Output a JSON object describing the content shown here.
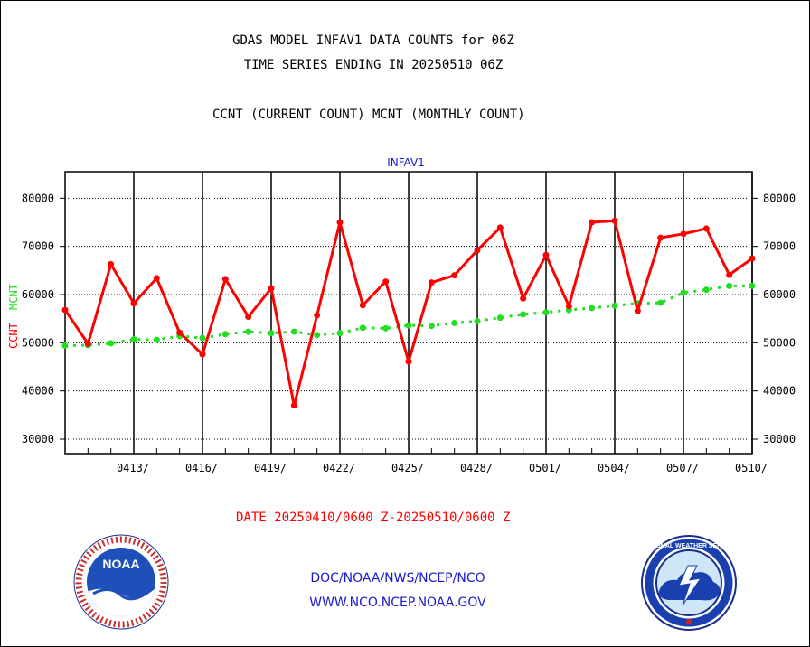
{
  "header": {
    "title_line1": "GDAS MODEL INFAV1 DATA COUNTS for 06Z",
    "title_line2": "TIME SERIES ENDING IN 20250510 06Z",
    "subtitle": "CCNT (CURRENT COUNT) MCNT (MONTHLY COUNT)"
  },
  "footer": {
    "date_range": "DATE 20250410/0600 Z-20250510/0600 Z",
    "org_path": "DOC/NOAA/NWS/NCEP/NCO",
    "website": "WWW.NCO.NCEP.NOAA.GOV",
    "noaa_logo_text": "NOAA",
    "nws_logo_text": "NATIONAL WEATHER SERVICE"
  },
  "colors": {
    "ccnt": "#ff0000",
    "mcnt": "#22dd22",
    "panel_title": "#1a1acd",
    "footer_text": "#1a1acd"
  },
  "chart_data": {
    "type": "line",
    "title": "INFAV1",
    "ylabel_left": "CCNT",
    "ylabel_right": "MCNT",
    "ylim": [
      27000,
      85500
    ],
    "yticks": [
      30000,
      40000,
      50000,
      60000,
      70000,
      80000
    ],
    "ytick_labels": [
      "30000",
      "40000",
      "50000",
      "60000",
      "70000",
      "80000"
    ],
    "xlim": [
      0,
      30
    ],
    "xtick_days": [
      3,
      6,
      9,
      12,
      15,
      18,
      21,
      24,
      27,
      30
    ],
    "xtick_labels": [
      "0413/",
      "0416/",
      "0419/",
      "0422/",
      "0425/",
      "0428/",
      "0501/",
      "0504/",
      "0507/",
      "0510/"
    ],
    "grid": true,
    "series": [
      {
        "name": "CCNT",
        "x": [
          0,
          1,
          2,
          3,
          4,
          5,
          6,
          7,
          8,
          9,
          10,
          11,
          12,
          13,
          14,
          15,
          16,
          17,
          18,
          19,
          20,
          21,
          22,
          23,
          24,
          25,
          26,
          27,
          28,
          29,
          30
        ],
        "values": [
          56800,
          49800,
          66300,
          58200,
          63400,
          52100,
          47600,
          63200,
          55400,
          61300,
          37000,
          55700,
          75000,
          57800,
          62700,
          46100,
          62500,
          64000,
          69200,
          73900,
          59200,
          68200,
          57600,
          75000,
          75300,
          56600,
          71800,
          72600,
          73700,
          64100,
          67500
        ]
      },
      {
        "name": "MCNT",
        "x": [
          0,
          1,
          2,
          3,
          4,
          5,
          6,
          7,
          8,
          9,
          10,
          11,
          12,
          13,
          14,
          15,
          16,
          17,
          18,
          19,
          20,
          21,
          22,
          23,
          24,
          25,
          26,
          27,
          28,
          29,
          30
        ],
        "values": [
          49400,
          49500,
          49900,
          50700,
          50600,
          51400,
          51000,
          51800,
          52300,
          52000,
          52300,
          51600,
          52000,
          53100,
          53000,
          53600,
          53500,
          54100,
          54500,
          55200,
          55900,
          56300,
          56800,
          57200,
          57700,
          58200,
          58300,
          60400,
          61000,
          61800,
          61800
        ]
      }
    ]
  }
}
